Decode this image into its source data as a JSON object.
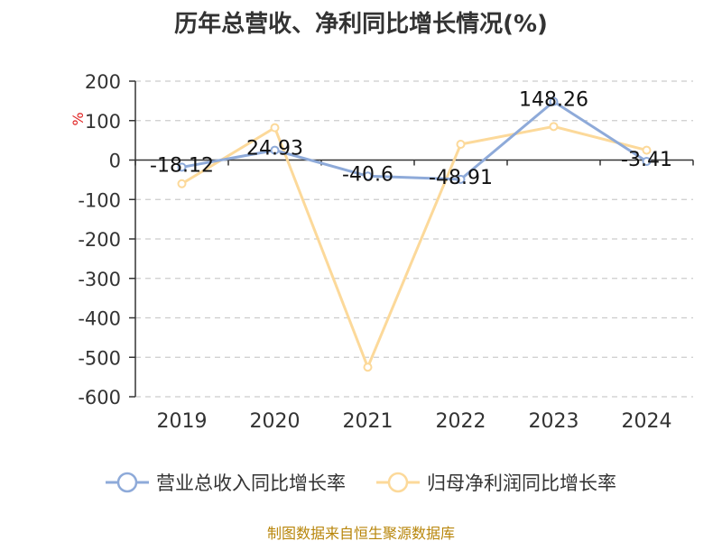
{
  "title": "历年总营收、净利同比增长情况(%)",
  "source_text": "制图数据来自恒生聚源数据库",
  "chart_data": {
    "type": "line",
    "title": "历年总营收、净利同比增长情况(%)",
    "ylabel": "%",
    "xlabel": "",
    "categories": [
      "2019",
      "2020",
      "2021",
      "2022",
      "2023",
      "2024"
    ],
    "yticks": [
      "200",
      "100",
      "0",
      "-100",
      "-200",
      "-300",
      "-400",
      "-500",
      "-600"
    ],
    "ylim": [
      -600,
      200
    ],
    "grid": true,
    "legend_position": "bottom",
    "series": [
      {
        "name": "营业总收入同比增长率",
        "color": "#8eaad9",
        "values": [
          -18.12,
          24.93,
          -40.6,
          -48.91,
          148.26,
          -3.41
        ],
        "labels": [
          "-18.12",
          "24.93",
          "-40.6",
          "-48.91",
          "148.26",
          "-3.41"
        ]
      },
      {
        "name": "归母净利润同比增长率",
        "color": "#fcd99a",
        "values": [
          -60,
          82,
          -525,
          40,
          85,
          25
        ]
      }
    ]
  }
}
